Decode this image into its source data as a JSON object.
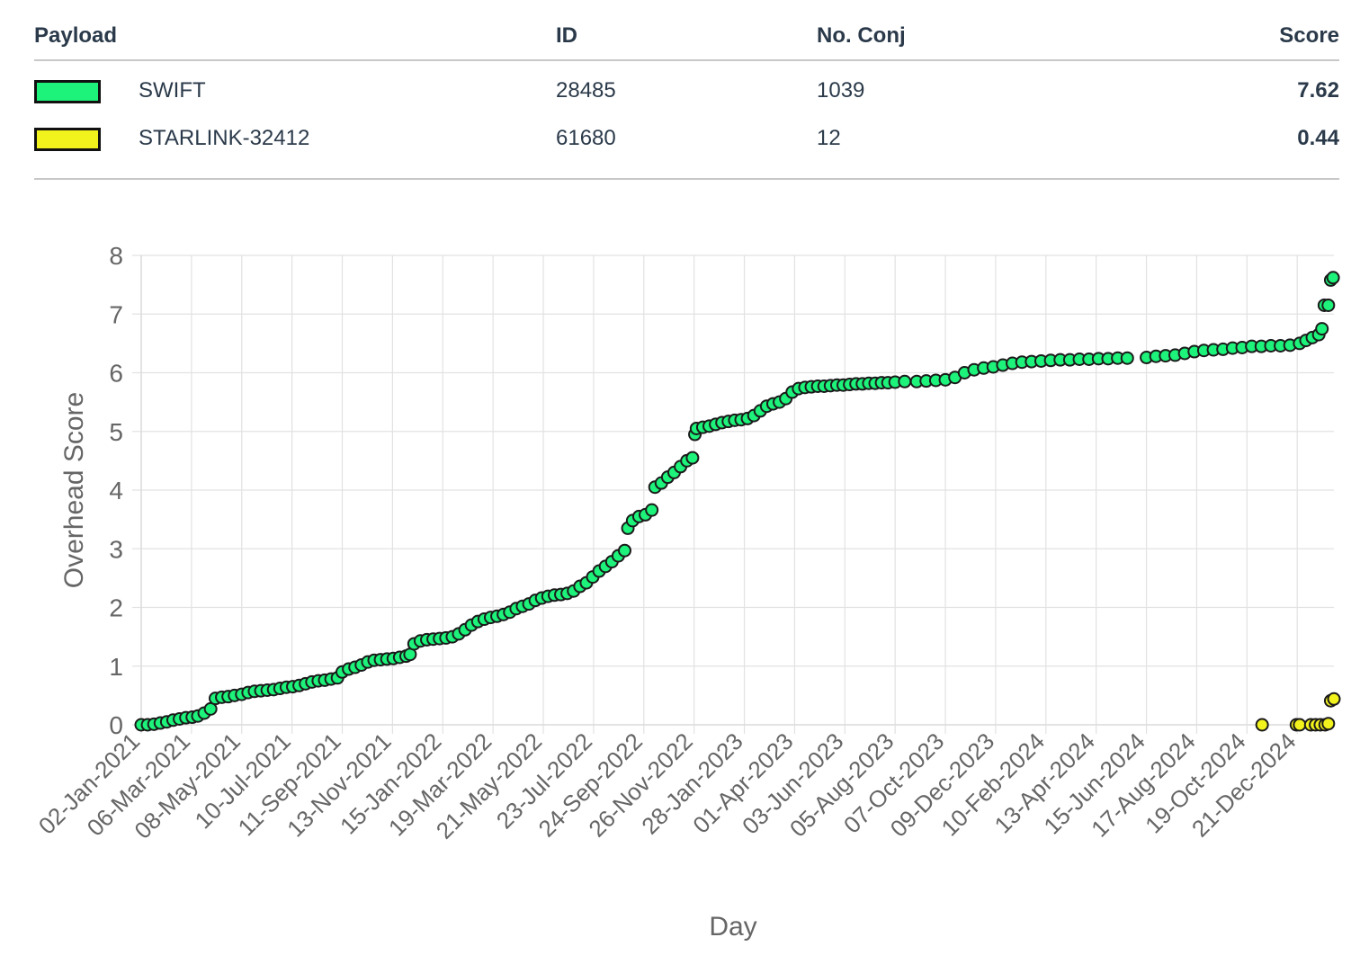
{
  "table": {
    "headers": {
      "payload": "Payload",
      "id": "ID",
      "conj": "No. Conj",
      "score": "Score"
    },
    "rows": [
      {
        "color": "#1df27a",
        "payload": "SWIFT",
        "id": "28485",
        "conj": "1039",
        "score": "7.62"
      },
      {
        "color": "#f2f21d",
        "payload": "STARLINK-32412",
        "id": "61680",
        "conj": "12",
        "score": "0.44"
      }
    ]
  },
  "chart_data": {
    "type": "scatter",
    "xlabel": "Day",
    "ylabel": "Overhead Score",
    "ylim": [
      0,
      8
    ],
    "xlim": [
      "2021-01-02",
      "2025-02-05"
    ],
    "grid": true,
    "x_tick_labels": [
      "02-Jan-2021",
      "06-Mar-2021",
      "08-May-2021",
      "10-Jul-2021",
      "11-Sep-2021",
      "13-Nov-2021",
      "15-Jan-2022",
      "19-Mar-2022",
      "21-May-2022",
      "23-Jul-2022",
      "24-Sep-2022",
      "26-Nov-2022",
      "28-Jan-2023",
      "01-Apr-2023",
      "03-Jun-2023",
      "05-Aug-2023",
      "07-Oct-2023",
      "09-Dec-2023",
      "10-Feb-2024",
      "13-Apr-2024",
      "15-Jun-2024",
      "17-Aug-2024",
      "19-Oct-2024",
      "21-Dec-2024"
    ],
    "y_ticks": [
      0,
      1,
      2,
      3,
      4,
      5,
      6,
      7,
      8
    ],
    "series": [
      {
        "name": "SWIFT",
        "color": "#1df27a",
        "points": [
          [
            "2021-01-02",
            0.0
          ],
          [
            "2021-01-10",
            0.0
          ],
          [
            "2021-01-18",
            0.01
          ],
          [
            "2021-01-26",
            0.03
          ],
          [
            "2021-02-03",
            0.05
          ],
          [
            "2021-02-11",
            0.08
          ],
          [
            "2021-02-19",
            0.1
          ],
          [
            "2021-02-27",
            0.12
          ],
          [
            "2021-03-07",
            0.13
          ],
          [
            "2021-03-14",
            0.15
          ],
          [
            "2021-03-22",
            0.2
          ],
          [
            "2021-03-30",
            0.27
          ],
          [
            "2021-04-05",
            0.45
          ],
          [
            "2021-04-13",
            0.47
          ],
          [
            "2021-04-21",
            0.48
          ],
          [
            "2021-04-29",
            0.5
          ],
          [
            "2021-05-08",
            0.52
          ],
          [
            "2021-05-16",
            0.55
          ],
          [
            "2021-05-24",
            0.57
          ],
          [
            "2021-06-01",
            0.58
          ],
          [
            "2021-06-09",
            0.59
          ],
          [
            "2021-06-17",
            0.6
          ],
          [
            "2021-06-25",
            0.62
          ],
          [
            "2021-07-03",
            0.64
          ],
          [
            "2021-07-11",
            0.65
          ],
          [
            "2021-07-19",
            0.67
          ],
          [
            "2021-07-27",
            0.7
          ],
          [
            "2021-08-04",
            0.73
          ],
          [
            "2021-08-12",
            0.75
          ],
          [
            "2021-08-20",
            0.76
          ],
          [
            "2021-08-28",
            0.78
          ],
          [
            "2021-09-05",
            0.8
          ],
          [
            "2021-09-11",
            0.9
          ],
          [
            "2021-09-19",
            0.95
          ],
          [
            "2021-09-27",
            0.98
          ],
          [
            "2021-10-05",
            1.02
          ],
          [
            "2021-10-13",
            1.07
          ],
          [
            "2021-10-21",
            1.1
          ],
          [
            "2021-10-29",
            1.11
          ],
          [
            "2021-11-06",
            1.12
          ],
          [
            "2021-11-14",
            1.13
          ],
          [
            "2021-11-22",
            1.15
          ],
          [
            "2021-11-30",
            1.17
          ],
          [
            "2021-12-05",
            1.2
          ],
          [
            "2021-12-10",
            1.38
          ],
          [
            "2021-12-18",
            1.43
          ],
          [
            "2021-12-26",
            1.45
          ],
          [
            "2022-01-03",
            1.46
          ],
          [
            "2022-01-11",
            1.47
          ],
          [
            "2022-01-19",
            1.48
          ],
          [
            "2022-01-27",
            1.5
          ],
          [
            "2022-02-04",
            1.55
          ],
          [
            "2022-02-12",
            1.62
          ],
          [
            "2022-02-20",
            1.7
          ],
          [
            "2022-02-28",
            1.76
          ],
          [
            "2022-03-08",
            1.8
          ],
          [
            "2022-03-16",
            1.83
          ],
          [
            "2022-03-24",
            1.85
          ],
          [
            "2022-04-01",
            1.88
          ],
          [
            "2022-04-09",
            1.92
          ],
          [
            "2022-04-17",
            1.98
          ],
          [
            "2022-04-25",
            2.02
          ],
          [
            "2022-05-03",
            2.06
          ],
          [
            "2022-05-11",
            2.12
          ],
          [
            "2022-05-19",
            2.16
          ],
          [
            "2022-05-27",
            2.19
          ],
          [
            "2022-06-04",
            2.21
          ],
          [
            "2022-06-12",
            2.22
          ],
          [
            "2022-06-20",
            2.24
          ],
          [
            "2022-06-28",
            2.28
          ],
          [
            "2022-07-06",
            2.36
          ],
          [
            "2022-07-14",
            2.42
          ],
          [
            "2022-07-22",
            2.52
          ],
          [
            "2022-07-30",
            2.62
          ],
          [
            "2022-08-07",
            2.7
          ],
          [
            "2022-08-15",
            2.78
          ],
          [
            "2022-08-23",
            2.88
          ],
          [
            "2022-08-31",
            2.97
          ],
          [
            "2022-09-04",
            3.35
          ],
          [
            "2022-09-10",
            3.48
          ],
          [
            "2022-09-18",
            3.55
          ],
          [
            "2022-09-26",
            3.58
          ],
          [
            "2022-10-04",
            3.66
          ],
          [
            "2022-10-08",
            4.05
          ],
          [
            "2022-10-16",
            4.12
          ],
          [
            "2022-10-24",
            4.22
          ],
          [
            "2022-11-01",
            4.3
          ],
          [
            "2022-11-09",
            4.4
          ],
          [
            "2022-11-17",
            4.5
          ],
          [
            "2022-11-24",
            4.55
          ],
          [
            "2022-11-27",
            4.95
          ],
          [
            "2022-11-29",
            5.05
          ],
          [
            "2022-12-07",
            5.07
          ],
          [
            "2022-12-15",
            5.09
          ],
          [
            "2022-12-23",
            5.12
          ],
          [
            "2022-12-31",
            5.15
          ],
          [
            "2023-01-08",
            5.17
          ],
          [
            "2023-01-16",
            5.19
          ],
          [
            "2023-01-24",
            5.2
          ],
          [
            "2023-02-01",
            5.22
          ],
          [
            "2023-02-09",
            5.27
          ],
          [
            "2023-02-17",
            5.35
          ],
          [
            "2023-02-25",
            5.43
          ],
          [
            "2023-03-05",
            5.47
          ],
          [
            "2023-03-13",
            5.5
          ],
          [
            "2023-03-21",
            5.56
          ],
          [
            "2023-03-29",
            5.67
          ],
          [
            "2023-04-06",
            5.73
          ],
          [
            "2023-04-14",
            5.75
          ],
          [
            "2023-04-22",
            5.76
          ],
          [
            "2023-04-30",
            5.77
          ],
          [
            "2023-05-08",
            5.77
          ],
          [
            "2023-05-16",
            5.78
          ],
          [
            "2023-05-24",
            5.79
          ],
          [
            "2023-06-01",
            5.79
          ],
          [
            "2023-06-09",
            5.8
          ],
          [
            "2023-06-17",
            5.81
          ],
          [
            "2023-06-25",
            5.81
          ],
          [
            "2023-07-03",
            5.82
          ],
          [
            "2023-07-11",
            5.82
          ],
          [
            "2023-07-19",
            5.83
          ],
          [
            "2023-07-27",
            5.83
          ],
          [
            "2023-08-05",
            5.84
          ],
          [
            "2023-08-17",
            5.85
          ],
          [
            "2023-09-01",
            5.85
          ],
          [
            "2023-09-13",
            5.86
          ],
          [
            "2023-09-25",
            5.87
          ],
          [
            "2023-10-07",
            5.88
          ],
          [
            "2023-10-19",
            5.92
          ],
          [
            "2023-10-31",
            6.0
          ],
          [
            "2023-11-12",
            6.05
          ],
          [
            "2023-11-24",
            6.08
          ],
          [
            "2023-12-06",
            6.1
          ],
          [
            "2023-12-18",
            6.13
          ],
          [
            "2023-12-30",
            6.16
          ],
          [
            "2024-01-11",
            6.18
          ],
          [
            "2024-01-23",
            6.19
          ],
          [
            "2024-02-04",
            6.2
          ],
          [
            "2024-02-16",
            6.21
          ],
          [
            "2024-02-28",
            6.22
          ],
          [
            "2024-03-11",
            6.22
          ],
          [
            "2024-03-23",
            6.23
          ],
          [
            "2024-04-04",
            6.23
          ],
          [
            "2024-04-16",
            6.24
          ],
          [
            "2024-04-28",
            6.24
          ],
          [
            "2024-05-10",
            6.25
          ],
          [
            "2024-05-22",
            6.25
          ],
          [
            "2024-06-15",
            6.26
          ],
          [
            "2024-06-27",
            6.28
          ],
          [
            "2024-07-09",
            6.29
          ],
          [
            "2024-07-21",
            6.3
          ],
          [
            "2024-08-02",
            6.33
          ],
          [
            "2024-08-14",
            6.36
          ],
          [
            "2024-08-26",
            6.38
          ],
          [
            "2024-09-07",
            6.39
          ],
          [
            "2024-09-19",
            6.4
          ],
          [
            "2024-10-01",
            6.42
          ],
          [
            "2024-10-13",
            6.43
          ],
          [
            "2024-10-25",
            6.45
          ],
          [
            "2024-11-06",
            6.45
          ],
          [
            "2024-11-18",
            6.46
          ],
          [
            "2024-11-30",
            6.46
          ],
          [
            "2024-12-12",
            6.47
          ],
          [
            "2024-12-24",
            6.5
          ],
          [
            "2025-01-01",
            6.55
          ],
          [
            "2025-01-09",
            6.6
          ],
          [
            "2025-01-17",
            6.65
          ],
          [
            "2025-01-21",
            6.75
          ],
          [
            "2025-01-24",
            7.15
          ],
          [
            "2025-01-29",
            7.15
          ],
          [
            "2025-02-01",
            7.58
          ],
          [
            "2025-02-04",
            7.62
          ]
        ]
      },
      {
        "name": "STARLINK-32412",
        "color": "#f2f21d",
        "points": [
          [
            "2024-11-07",
            0.0
          ],
          [
            "2024-12-20",
            0.0
          ],
          [
            "2024-12-24",
            0.0
          ],
          [
            "2025-01-07",
            0.0
          ],
          [
            "2025-01-13",
            0.0
          ],
          [
            "2025-01-19",
            0.0
          ],
          [
            "2025-01-25",
            0.0
          ],
          [
            "2025-01-29",
            0.02
          ],
          [
            "2025-02-01",
            0.41
          ],
          [
            "2025-02-05",
            0.44
          ]
        ]
      }
    ]
  }
}
